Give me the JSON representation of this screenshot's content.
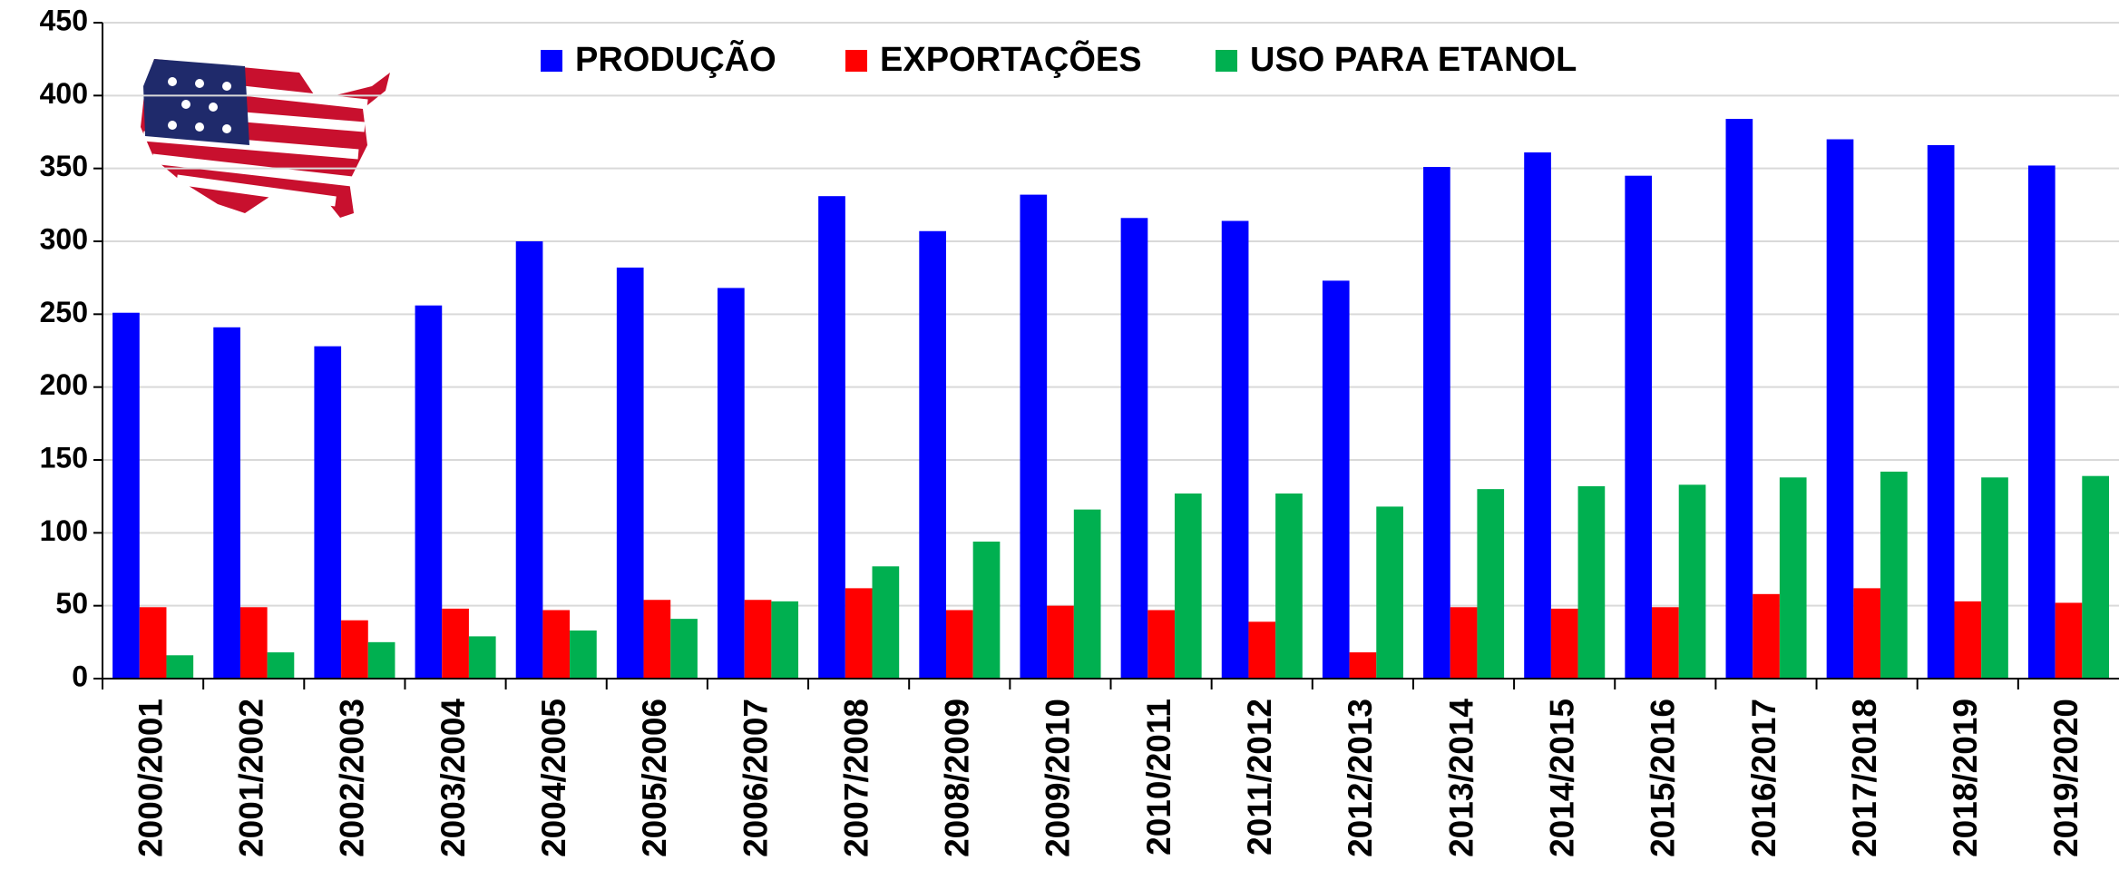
{
  "chart_data": {
    "type": "bar",
    "categories": [
      "2000/2001",
      "2001/2002",
      "2002/2003",
      "2003/2004",
      "2004/2005",
      "2005/2006",
      "2006/2007",
      "2007/2008",
      "2008/2009",
      "2009/2010",
      "2010/2011",
      "2011/2012",
      "2012/2013",
      "2013/2014",
      "2014/2015",
      "2015/2016",
      "2016/2017",
      "2017/2018",
      "2018/2019",
      "2019/2020"
    ],
    "series": [
      {
        "name": "PRODUÇÃO",
        "color": "#0000ff",
        "values": [
          251,
          241,
          228,
          256,
          300,
          282,
          268,
          331,
          307,
          332,
          316,
          314,
          273,
          351,
          361,
          345,
          384,
          370,
          366,
          352
        ]
      },
      {
        "name": "EXPORTAÇÕES",
        "color": "#ff0000",
        "values": [
          49,
          49,
          40,
          48,
          47,
          54,
          54,
          62,
          47,
          50,
          47,
          39,
          18,
          49,
          48,
          49,
          58,
          62,
          53,
          52
        ]
      },
      {
        "name": "USO PARA ETANOL",
        "color": "#00b050",
        "values": [
          16,
          18,
          25,
          29,
          33,
          41,
          53,
          77,
          94,
          116,
          127,
          127,
          118,
          130,
          132,
          133,
          138,
          142,
          138,
          139
        ]
      }
    ],
    "ylim": [
      0,
      450
    ],
    "yticks": [
      0,
      50,
      100,
      150,
      200,
      250,
      300,
      350,
      400,
      450
    ],
    "grid": true
  }
}
